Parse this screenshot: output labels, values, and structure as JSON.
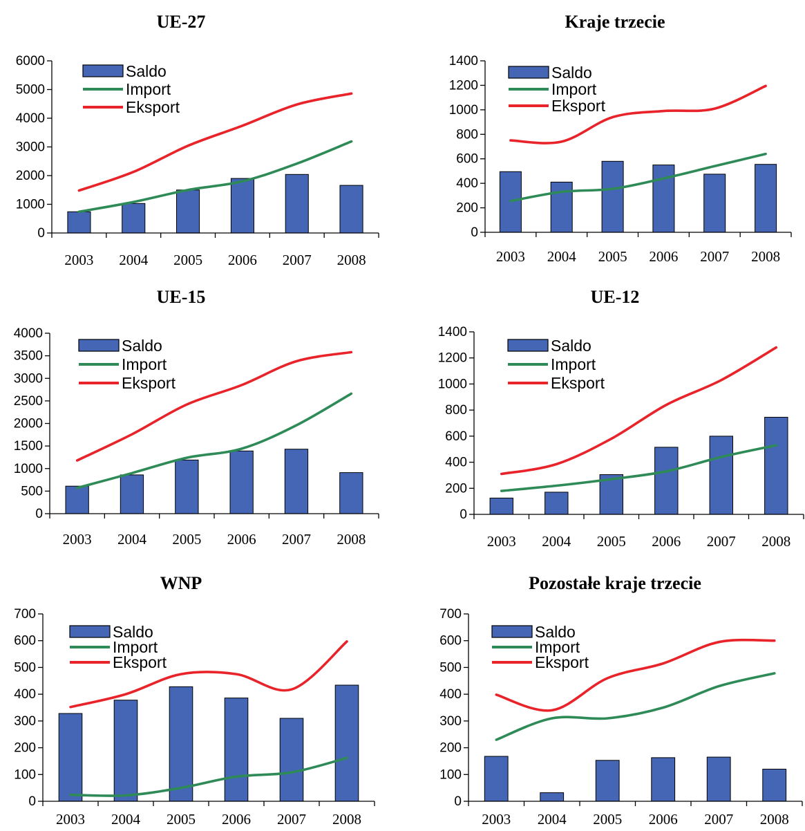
{
  "colors": {
    "saldo": "#4466b4",
    "saldo_stroke": "#000000",
    "import": "#2e8b57",
    "eksport": "#e8232a"
  },
  "legend": {
    "saldo": "Saldo",
    "import": "Import",
    "eksport": "Eksport"
  },
  "chart_data": [
    {
      "type": "bar",
      "title": "UE-27",
      "categories": [
        "2003",
        "2004",
        "2005",
        "2006",
        "2007",
        "2008"
      ],
      "ylim": [
        0,
        6000
      ],
      "yticks": [
        0,
        1000,
        2000,
        3000,
        4000,
        5000,
        6000
      ],
      "series": [
        {
          "name": "Saldo",
          "type": "bar",
          "values": [
            740,
            1030,
            1500,
            1900,
            2040,
            1660
          ]
        },
        {
          "name": "Import",
          "type": "line",
          "values": [
            740,
            1080,
            1500,
            1800,
            2420,
            3190
          ]
        },
        {
          "name": "Eksport",
          "type": "line",
          "values": [
            1480,
            2130,
            3040,
            3740,
            4480,
            4860
          ]
        }
      ]
    },
    {
      "type": "bar",
      "title": "Kraje trzecie",
      "categories": [
        "2003",
        "2004",
        "2005",
        "2006",
        "2007",
        "2008"
      ],
      "ylim": [
        0,
        1400
      ],
      "yticks": [
        0,
        200,
        400,
        600,
        800,
        1000,
        1200,
        1400
      ],
      "series": [
        {
          "name": "Saldo",
          "type": "bar",
          "values": [
            495,
            410,
            580,
            550,
            475,
            555
          ]
        },
        {
          "name": "Import",
          "type": "line",
          "values": [
            255,
            330,
            355,
            440,
            540,
            640
          ]
        },
        {
          "name": "Eksport",
          "type": "line",
          "values": [
            750,
            740,
            940,
            990,
            1010,
            1195
          ]
        }
      ]
    },
    {
      "type": "bar",
      "title": "UE-15",
      "categories": [
        "2003",
        "2004",
        "2005",
        "2006",
        "2007",
        "2008"
      ],
      "ylim": [
        0,
        4000
      ],
      "yticks": [
        0,
        500,
        1000,
        1500,
        2000,
        2500,
        3000,
        3500,
        4000
      ],
      "series": [
        {
          "name": "Saldo",
          "type": "bar",
          "values": [
            610,
            860,
            1190,
            1390,
            1430,
            910
          ]
        },
        {
          "name": "Import",
          "type": "line",
          "values": [
            570,
            900,
            1240,
            1440,
            1960,
            2660
          ]
        },
        {
          "name": "Eksport",
          "type": "line",
          "values": [
            1180,
            1760,
            2420,
            2850,
            3380,
            3580
          ]
        }
      ]
    },
    {
      "type": "bar",
      "title": "UE-12",
      "categories": [
        "2003",
        "2004",
        "2005",
        "2006",
        "2007",
        "2008"
      ],
      "ylim": [
        0,
        1400
      ],
      "yticks": [
        0,
        200,
        400,
        600,
        800,
        1000,
        1200,
        1400
      ],
      "series": [
        {
          "name": "Saldo",
          "type": "bar",
          "values": [
            125,
            170,
            305,
            515,
            600,
            745
          ]
        },
        {
          "name": "Import",
          "type": "line",
          "values": [
            180,
            220,
            270,
            330,
            440,
            530
          ]
        },
        {
          "name": "Eksport",
          "type": "line",
          "values": [
            310,
            385,
            580,
            840,
            1030,
            1280
          ]
        }
      ]
    },
    {
      "type": "bar",
      "title": "WNP",
      "categories": [
        "2003",
        "2004",
        "2005",
        "2006",
        "2007",
        "2008"
      ],
      "ylim": [
        0,
        700
      ],
      "yticks": [
        0,
        100,
        200,
        300,
        400,
        500,
        600,
        700
      ],
      "series": [
        {
          "name": "Saldo",
          "type": "bar",
          "values": [
            328,
            378,
            428,
            386,
            310,
            434
          ]
        },
        {
          "name": "Import",
          "type": "line",
          "values": [
            24,
            22,
            50,
            92,
            108,
            162
          ]
        },
        {
          "name": "Eksport",
          "type": "line",
          "values": [
            352,
            400,
            475,
            475,
            418,
            597
          ]
        }
      ]
    },
    {
      "type": "bar",
      "title": "Pozostałe kraje trzecie",
      "categories": [
        "2003",
        "2004",
        "2005",
        "2006",
        "2007",
        "2008"
      ],
      "ylim": [
        0,
        700
      ],
      "yticks": [
        0,
        100,
        200,
        300,
        400,
        500,
        600,
        700
      ],
      "series": [
        {
          "name": "Saldo",
          "type": "bar",
          "values": [
            168,
            32,
            153,
            163,
            165,
            120
          ]
        },
        {
          "name": "Import",
          "type": "line",
          "values": [
            230,
            310,
            310,
            350,
            430,
            478
          ]
        },
        {
          "name": "Eksport",
          "type": "line",
          "values": [
            398,
            340,
            460,
            515,
            595,
            600
          ]
        }
      ]
    }
  ]
}
